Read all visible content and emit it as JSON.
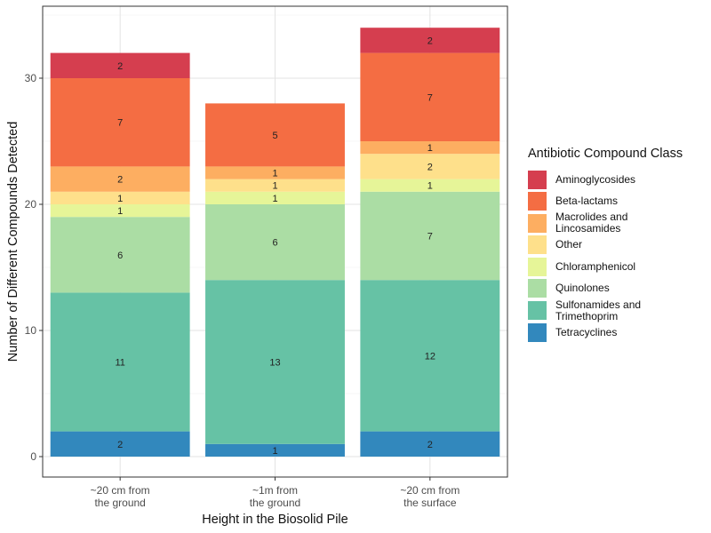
{
  "chart_data": {
    "type": "bar",
    "stacked": true,
    "xlabel": "Height in the Biosolid Pile",
    "ylabel": "Number of Different Compounds Detected",
    "ylim": [
      0,
      35
    ],
    "yticks": [
      0,
      10,
      20,
      30
    ],
    "categories": [
      "~20 cm from\nthe ground",
      "~1m from\nthe ground",
      "~20 cm from\nthe surface"
    ],
    "legend_title": "Antibiotic Compound Class",
    "legend_position": "right",
    "grid": true,
    "series": [
      {
        "name": "Tetracyclines",
        "color": "#3288BD",
        "values": [
          2,
          1,
          2
        ]
      },
      {
        "name": "Sulfonamides and\nTrimethoprim",
        "color": "#66C2A5",
        "values": [
          11,
          13,
          12
        ]
      },
      {
        "name": "Quinolones",
        "color": "#ABDDA4",
        "values": [
          6,
          6,
          7
        ]
      },
      {
        "name": "Chloramphenicol",
        "color": "#E6F598",
        "values": [
          1,
          1,
          1
        ]
      },
      {
        "name": "Other",
        "color": "#FEE08B",
        "values": [
          1,
          1,
          2
        ]
      },
      {
        "name": "Macrolides and\nLincosamides",
        "color": "#FDAE61",
        "values": [
          2,
          1,
          1
        ]
      },
      {
        "name": "Beta-lactams",
        "color": "#F46D43",
        "values": [
          7,
          5,
          7
        ]
      },
      {
        "name": "Aminoglycosides",
        "color": "#D53E4F",
        "values": [
          2,
          0,
          2
        ]
      }
    ]
  }
}
